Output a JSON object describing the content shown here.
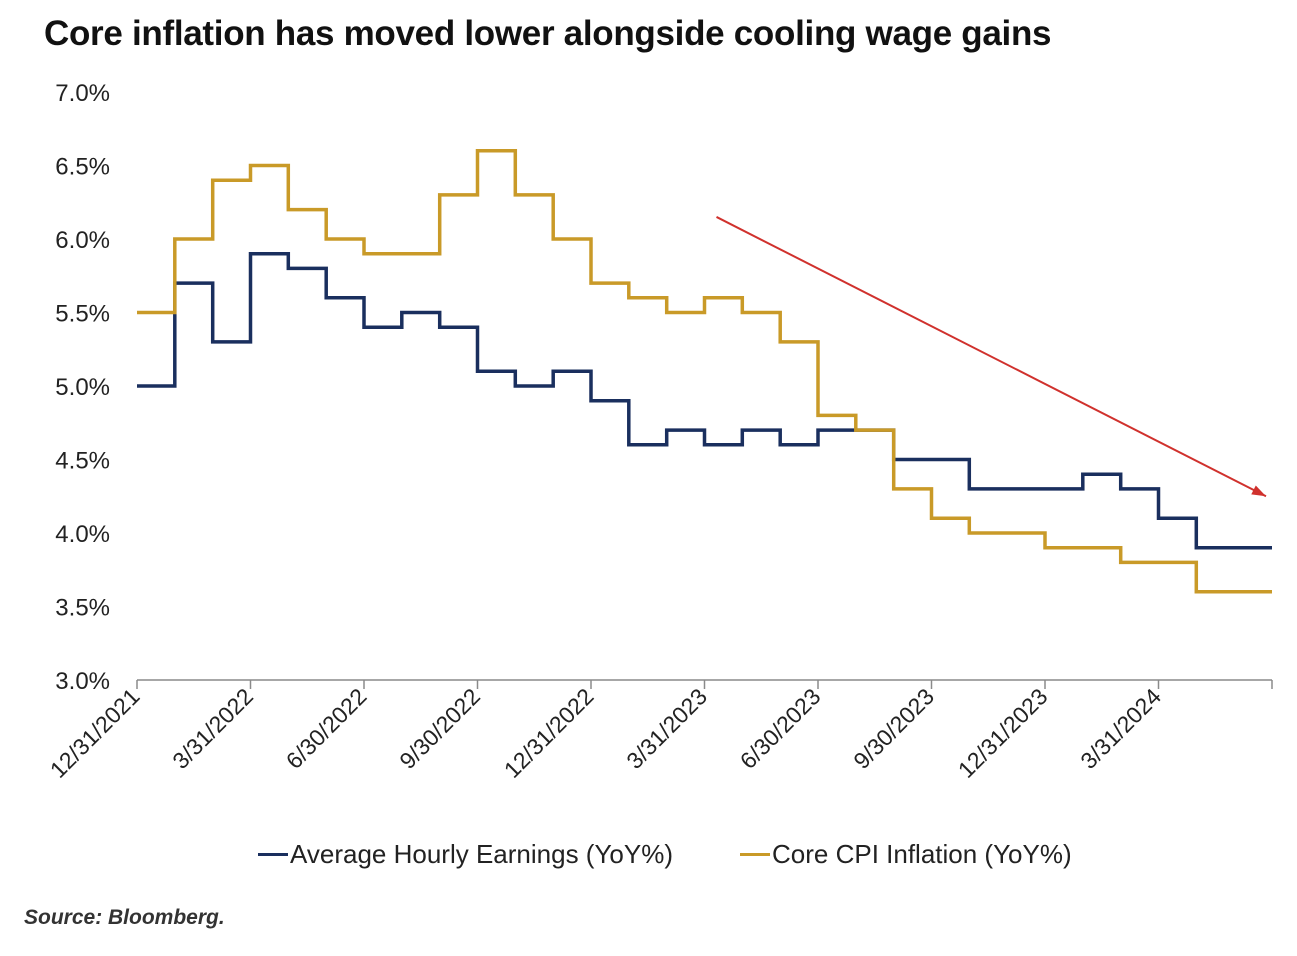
{
  "page": {
    "title": "Core inflation has moved lower alongside cooling wage gains",
    "source": "Source: Bloomberg."
  },
  "chart_data": {
    "type": "line",
    "title": "Core inflation has moved lower alongside cooling wage gains",
    "xlabel": "",
    "ylabel": "",
    "ylim": [
      3.0,
      7.0
    ],
    "y_ticks": [
      "3.0%",
      "3.5%",
      "4.0%",
      "4.5%",
      "5.0%",
      "5.5%",
      "6.0%",
      "6.5%",
      "7.0%"
    ],
    "x_tick_labels": [
      "12/31/2021",
      "3/31/2022",
      "6/30/2022",
      "9/30/2022",
      "12/31/2022",
      "3/31/2023",
      "6/30/2023",
      "9/30/2023",
      "12/31/2023",
      "3/31/2024"
    ],
    "x": [
      "Dec 2021",
      "Jan 2022",
      "Feb 2022",
      "Mar 2022",
      "Apr 2022",
      "May 2022",
      "Jun 2022",
      "Jul 2022",
      "Aug 2022",
      "Sep 2022",
      "Oct 2022",
      "Nov 2022",
      "Dec 2022",
      "Jan 2023",
      "Feb 2023",
      "Mar 2023",
      "Apr 2023",
      "May 2023",
      "Jun 2023",
      "Jul 2023",
      "Aug 2023",
      "Sep 2023",
      "Oct 2023",
      "Nov 2023",
      "Dec 2023",
      "Jan 2024",
      "Feb 2024",
      "Mar 2024",
      "Apr 2024",
      "May 2024"
    ],
    "step": true,
    "grid": false,
    "legend_position": "bottom",
    "series": [
      {
        "name": "Average Hourly Earnings (YoY%)",
        "color": "#1a2f5e",
        "values": [
          5.0,
          5.7,
          5.3,
          5.9,
          5.8,
          5.6,
          5.4,
          5.5,
          5.4,
          5.1,
          5.0,
          5.1,
          4.9,
          4.6,
          4.7,
          4.6,
          4.7,
          4.6,
          4.7,
          4.7,
          4.5,
          4.5,
          4.3,
          4.3,
          4.3,
          4.4,
          4.3,
          4.1,
          3.9,
          3.9
        ]
      },
      {
        "name": "Core CPI Inflation (YoY%)",
        "color": "#c99a28",
        "values": [
          5.5,
          6.0,
          6.4,
          6.5,
          6.2,
          6.0,
          5.9,
          5.9,
          6.3,
          6.6,
          6.3,
          6.0,
          5.7,
          5.6,
          5.5,
          5.6,
          5.5,
          5.3,
          4.8,
          4.7,
          4.3,
          4.1,
          4.0,
          4.0,
          3.9,
          3.9,
          3.8,
          3.8,
          3.6,
          3.6
        ]
      }
    ],
    "annotations": [
      {
        "type": "arrow",
        "color": "#d0312d",
        "from": {
          "x": "Mar 2023",
          "y": 6.15
        },
        "to": {
          "x": "May 2024",
          "y": 4.25
        }
      }
    ]
  }
}
